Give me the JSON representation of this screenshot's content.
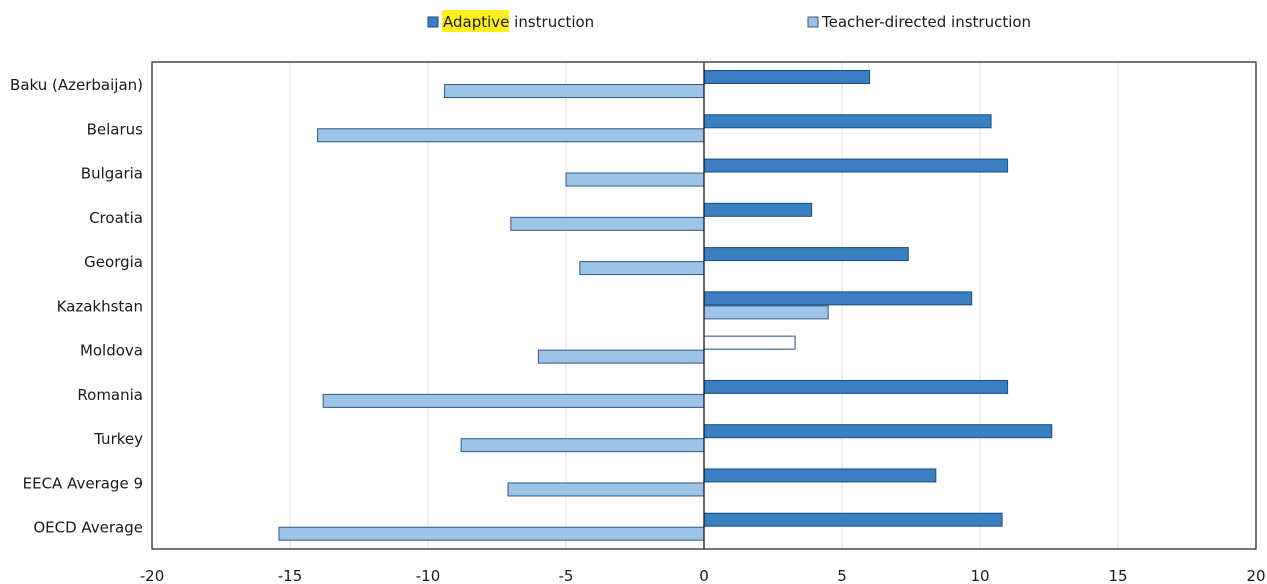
{
  "chart_data": {
    "type": "bar",
    "orientation": "horizontal",
    "categories": [
      "Baku (Azerbaijan)",
      "Belarus",
      "Bulgaria",
      "Croatia",
      "Georgia",
      "Kazakhstan",
      "Moldova",
      "Romania",
      "Turkey",
      "EECA Average 9",
      "OECD Average"
    ],
    "series": [
      {
        "name": "Adaptive instruction",
        "values": [
          6.0,
          10.4,
          11.0,
          3.9,
          7.4,
          9.7,
          3.3,
          11.0,
          12.6,
          8.4,
          10.8
        ]
      },
      {
        "name": "Teacher-directed instruction",
        "values": [
          -9.4,
          -14.0,
          -5.0,
          -7.0,
          -4.5,
          4.5,
          -6.0,
          -13.8,
          -8.8,
          -7.1,
          -15.4
        ]
      }
    ],
    "not_significant": [
      {
        "series": 0,
        "category": 6
      }
    ],
    "xlim": [
      -20,
      20
    ],
    "xticks": [
      "-20",
      "-15",
      "-10",
      "-5",
      "0",
      "5",
      "10",
      "15",
      "20"
    ],
    "legend_position": "top",
    "legend_highlight": {
      "text": "Adaptive",
      "rest": " instruction",
      "color": "#ffef1a"
    },
    "colors": {
      "adaptive": "#3a7fc2",
      "adaptive_border": "#1d4d7f",
      "teacher": "#9dc3e6",
      "teacher_border": "#2f5a85",
      "grid": "#e3e3e3"
    },
    "grid": true
  }
}
